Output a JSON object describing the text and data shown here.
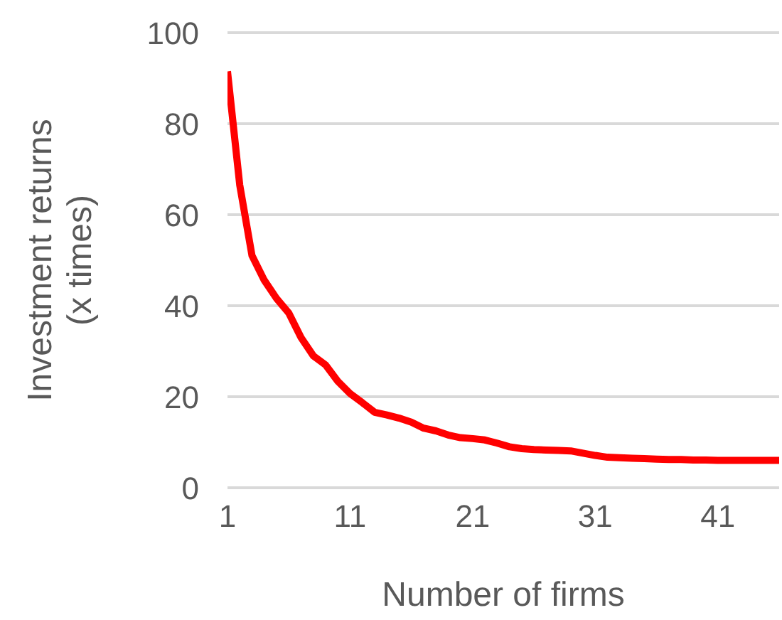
{
  "chart_data": {
    "type": "line",
    "xlabel": "Number of firms",
    "ylabel": "Investment returns\n(x times)",
    "x": [
      1,
      2,
      3,
      4,
      5,
      6,
      7,
      8,
      9,
      10,
      11,
      12,
      13,
      14,
      15,
      16,
      17,
      18,
      19,
      20,
      21,
      22,
      23,
      24,
      25,
      26,
      27,
      28,
      29,
      30,
      31,
      32,
      33,
      34,
      35,
      36,
      37,
      38,
      39,
      40,
      41,
      42,
      43,
      44,
      45,
      46
    ],
    "series": [
      {
        "color": "#ff0000",
        "values": [
          91.5,
          66.5,
          51,
          45.6,
          41.6,
          38.4,
          33,
          29,
          27,
          23.4,
          20.7,
          18.7,
          16.6,
          16,
          15.3,
          14.4,
          13.1,
          12.5,
          11.6,
          11,
          10.8,
          10.5,
          9.8,
          9,
          8.6,
          8.4,
          8.3,
          8.2,
          8.1,
          7.6,
          7.1,
          6.7,
          6.6,
          6.5,
          6.4,
          6.3,
          6.2,
          6.2,
          6.1,
          6.1,
          6,
          6,
          6,
          6,
          6,
          6
        ]
      }
    ],
    "xlim": [
      1,
      46
    ],
    "xticks": [
      1,
      11,
      21,
      31,
      41
    ],
    "ylim": [
      0,
      100
    ],
    "yticks": [
      0,
      20,
      40,
      60,
      80,
      100
    ],
    "grid": "y",
    "legend": false,
    "marker": "none",
    "line_style": "solid"
  }
}
